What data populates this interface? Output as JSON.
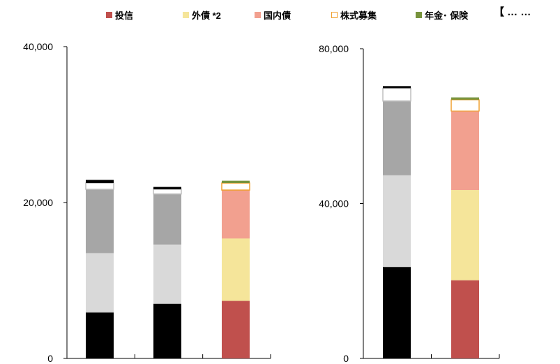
{
  "header_fragment": "【 … …",
  "legend": [
    {
      "label": "投信",
      "color": "#c0504d",
      "outline": false
    },
    {
      "label": "外債 *2",
      "color": "#f5e59a",
      "outline": false
    },
    {
      "label": "国内債",
      "color": "#f2a08f",
      "outline": false
    },
    {
      "label": "株式募集",
      "color": "#f0a030",
      "outline": true
    },
    {
      "label": "年金･ 保険",
      "color": "#77933c",
      "outline": false
    }
  ],
  "chart_data": [
    {
      "type": "bar",
      "stacked": true,
      "ylim": [
        0,
        40000
      ],
      "y_ticks": [
        "0",
        "20,000",
        "40,000"
      ],
      "y_tick_values": [
        0,
        20000,
        40000
      ],
      "categories": [
        "",
        "",
        ""
      ],
      "series": [
        {
          "color": "#000000",
          "values": [
            5900,
            7000,
            null
          ]
        },
        {
          "color": "#d9d9d9",
          "values": [
            7600,
            7600,
            null
          ]
        },
        {
          "color": "#a6a6a6",
          "values": [
            8200,
            6500,
            null
          ]
        },
        {
          "color": "#ffffff",
          "outline": "#bfbfbf",
          "values": [
            800,
            600,
            null
          ]
        },
        {
          "color": "#000000",
          "values": [
            400,
            300,
            null
          ]
        },
        {
          "color": "#c0504d",
          "values": [
            null,
            null,
            7400
          ]
        },
        {
          "color": "#f5e59a",
          "values": [
            null,
            null,
            8000
          ]
        },
        {
          "color": "#f2a08f",
          "values": [
            null,
            null,
            6200
          ]
        },
        {
          "color": "#ffffff",
          "outline": "#f0a030",
          "values": [
            null,
            null,
            900
          ]
        },
        {
          "color": "#77933c",
          "values": [
            null,
            null,
            300
          ]
        }
      ]
    },
    {
      "type": "bar",
      "stacked": true,
      "ylim": [
        0,
        80000
      ],
      "y_ticks": [
        "0",
        "40,000",
        "80,000"
      ],
      "y_tick_values": [
        0,
        40000,
        80000
      ],
      "categories": [
        "",
        ""
      ],
      "series": [
        {
          "color": "#000000",
          "values": [
            23600,
            null
          ]
        },
        {
          "color": "#d9d9d9",
          "values": [
            23700,
            null
          ]
        },
        {
          "color": "#a6a6a6",
          "values": [
            19200,
            null
          ]
        },
        {
          "color": "#ffffff",
          "outline": "#bfbfbf",
          "values": [
            3300,
            null
          ]
        },
        {
          "color": "#000000",
          "values": [
            500,
            null
          ]
        },
        {
          "color": "#c0504d",
          "values": [
            null,
            20200
          ]
        },
        {
          "color": "#f5e59a",
          "values": [
            null,
            23300
          ]
        },
        {
          "color": "#f2a08f",
          "values": [
            null,
            20400
          ]
        },
        {
          "color": "#ffffff",
          "outline": "#f0a030",
          "values": [
            null,
            2900
          ]
        },
        {
          "color": "#77933c",
          "values": [
            null,
            600
          ]
        }
      ]
    }
  ]
}
